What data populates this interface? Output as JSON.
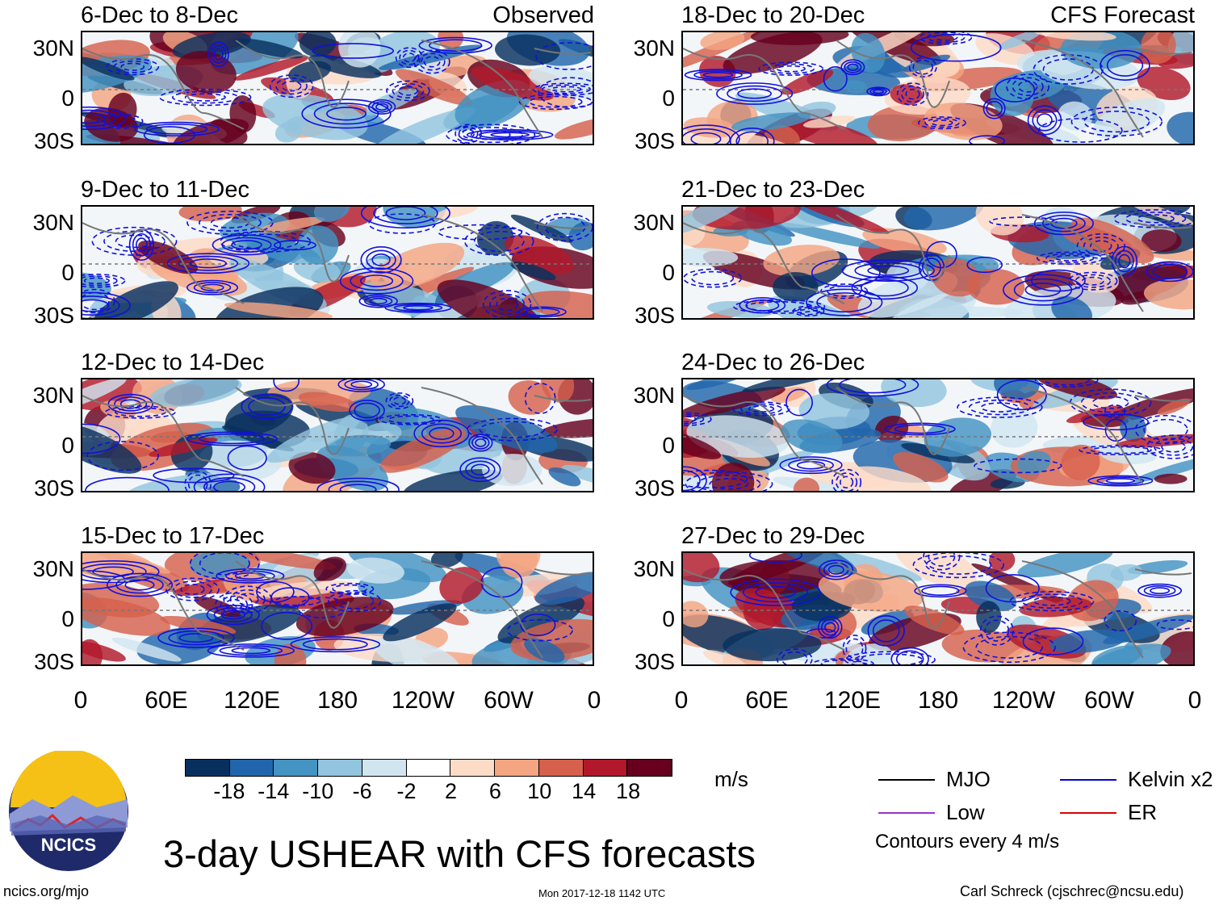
{
  "chart_data": {
    "type": "heatmap",
    "title": "3-day USHEAR with CFS forecasts",
    "units": "m/s",
    "x_ticks": [
      "0",
      "60E",
      "120E",
      "180",
      "120W",
      "60W",
      "0"
    ],
    "y_ticks": [
      "30N",
      "0",
      "30S"
    ],
    "columns": [
      {
        "tag": "Observed",
        "panels": [
          "6-Dec to 8-Dec",
          "9-Dec to 11-Dec",
          "12-Dec to 14-Dec",
          "15-Dec to 17-Dec"
        ]
      },
      {
        "tag": "CFS Forecast",
        "panels": [
          "18-Dec to 20-Dec",
          "21-Dec to 23-Dec",
          "24-Dec to 26-Dec",
          "27-Dec to 29-Dec"
        ]
      }
    ],
    "colorbar": {
      "levels": [
        "-18",
        "-14",
        "-10",
        "-6",
        "-2",
        "2",
        "6",
        "10",
        "14",
        "18"
      ],
      "colors": [
        "#08305e",
        "#2166ac",
        "#4393c3",
        "#92c5de",
        "#d1e5f0",
        "#ffffff",
        "#fddbc7",
        "#f4a582",
        "#d6604d",
        "#b2182b",
        "#67001f"
      ]
    },
    "legend": [
      {
        "label": "MJO",
        "color": "#000000"
      },
      {
        "label": "Kelvin x2",
        "color": "#0000dd"
      },
      {
        "label": "Low",
        "color": "#9933cc"
      },
      {
        "label": "ER",
        "color": "#dd0000"
      }
    ],
    "contour_note": "Contours every 4 m/s"
  },
  "footer": {
    "logo_text": "NCICS",
    "site": "ncics.org/mjo",
    "timestamp": "Mon 2017-12-18 1142 UTC",
    "author": "Carl Schreck (cjschrec@ncsu.edu)"
  }
}
